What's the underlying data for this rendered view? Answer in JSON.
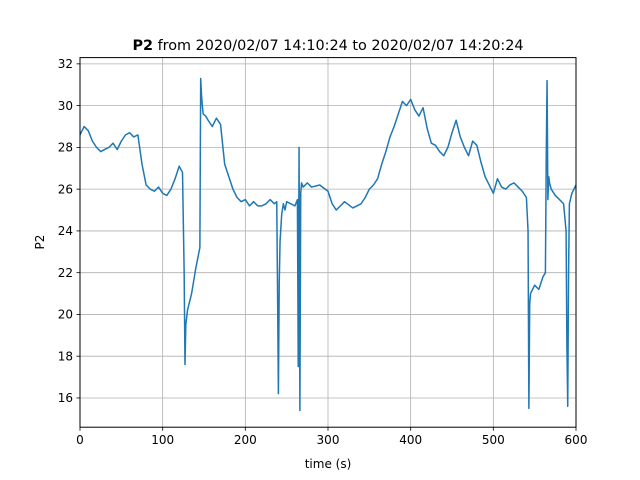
{
  "chart_data": {
    "type": "line",
    "title_bold": "P2",
    "title_rest": " from 2020/02/07 14:10:24 to 2020/02/07 14:20:24",
    "xlabel": "time (s)",
    "ylabel": "P2",
    "xlim": [
      0,
      600
    ],
    "ylim": [
      14.6,
      32.3
    ],
    "xticks": [
      0,
      100,
      200,
      300,
      400,
      500,
      600
    ],
    "xtick_labels": [
      "0",
      "100",
      "200",
      "300",
      "400",
      "500",
      "600"
    ],
    "yticks": [
      16,
      18,
      20,
      22,
      24,
      26,
      28,
      30,
      32
    ],
    "ytick_labels": [
      "16",
      "18",
      "20",
      "22",
      "24",
      "26",
      "28",
      "30",
      "32"
    ],
    "grid": true,
    "line_color": "#1f77b4",
    "series": [
      {
        "x": [
          0,
          5,
          10,
          15,
          20,
          25,
          30,
          35,
          40,
          45,
          50,
          55,
          60,
          65,
          70,
          75,
          80,
          85,
          90,
          95,
          100,
          105,
          110,
          115,
          120,
          124,
          126,
          127,
          128,
          130,
          135,
          140,
          145,
          146,
          147,
          148,
          149,
          152,
          155,
          160,
          165,
          170,
          175,
          180,
          185,
          190,
          195,
          200,
          205,
          210,
          215,
          220,
          225,
          230,
          235,
          238,
          239,
          240,
          241,
          242,
          244,
          246,
          248,
          250,
          255,
          260,
          263,
          264,
          265,
          266,
          267,
          268,
          270,
          275,
          280,
          290,
          300,
          305,
          310,
          315,
          320,
          330,
          340,
          345,
          350,
          355,
          360,
          365,
          370,
          375,
          380,
          385,
          390,
          395,
          400,
          405,
          410,
          415,
          420,
          425,
          430,
          435,
          440,
          445,
          450,
          455,
          460,
          465,
          470,
          475,
          480,
          485,
          490,
          495,
          500,
          505,
          510,
          515,
          520,
          525,
          530,
          535,
          540,
          542,
          543,
          544,
          545,
          550,
          555,
          560,
          563,
          564,
          565,
          566,
          567,
          568,
          570,
          575,
          580,
          585,
          588,
          589,
          590,
          591,
          592,
          595,
          600
        ],
        "y": [
          28.6,
          29.0,
          28.8,
          28.3,
          28.0,
          27.8,
          27.9,
          28.0,
          28.2,
          27.9,
          28.3,
          28.6,
          28.7,
          28.5,
          28.6,
          27.2,
          26.2,
          26.0,
          25.9,
          26.1,
          25.8,
          25.7,
          26.0,
          26.5,
          27.1,
          26.8,
          22.0,
          17.6,
          19.5,
          20.2,
          21.0,
          22.2,
          23.2,
          31.3,
          30.5,
          30.0,
          29.6,
          29.5,
          29.3,
          29.0,
          29.4,
          29.1,
          27.2,
          26.6,
          26.0,
          25.6,
          25.4,
          25.5,
          25.2,
          25.4,
          25.2,
          25.2,
          25.3,
          25.5,
          25.3,
          25.4,
          21.0,
          16.2,
          21.5,
          23.5,
          24.8,
          25.3,
          25.0,
          25.4,
          25.3,
          25.2,
          25.5,
          17.5,
          28.0,
          15.4,
          25.8,
          26.3,
          26.1,
          26.3,
          26.1,
          26.2,
          25.9,
          25.3,
          25.0,
          25.2,
          25.4,
          25.1,
          25.3,
          25.6,
          26.0,
          26.2,
          26.5,
          27.2,
          27.8,
          28.5,
          29.0,
          29.6,
          30.2,
          30.0,
          30.3,
          29.8,
          29.5,
          29.9,
          28.9,
          28.2,
          28.1,
          27.8,
          27.6,
          28.0,
          28.7,
          29.3,
          28.5,
          28.0,
          27.6,
          28.3,
          28.1,
          27.3,
          26.6,
          26.2,
          25.8,
          26.5,
          26.1,
          26.0,
          26.2,
          26.3,
          26.1,
          25.9,
          25.6,
          24.0,
          15.5,
          20.5,
          21.0,
          21.4,
          21.2,
          21.8,
          22.0,
          27.5,
          31.2,
          25.5,
          26.6,
          26.3,
          26.0,
          25.7,
          25.5,
          25.3,
          24.0,
          18.5,
          15.6,
          22.0,
          25.3,
          25.8,
          26.2
        ]
      }
    ]
  }
}
